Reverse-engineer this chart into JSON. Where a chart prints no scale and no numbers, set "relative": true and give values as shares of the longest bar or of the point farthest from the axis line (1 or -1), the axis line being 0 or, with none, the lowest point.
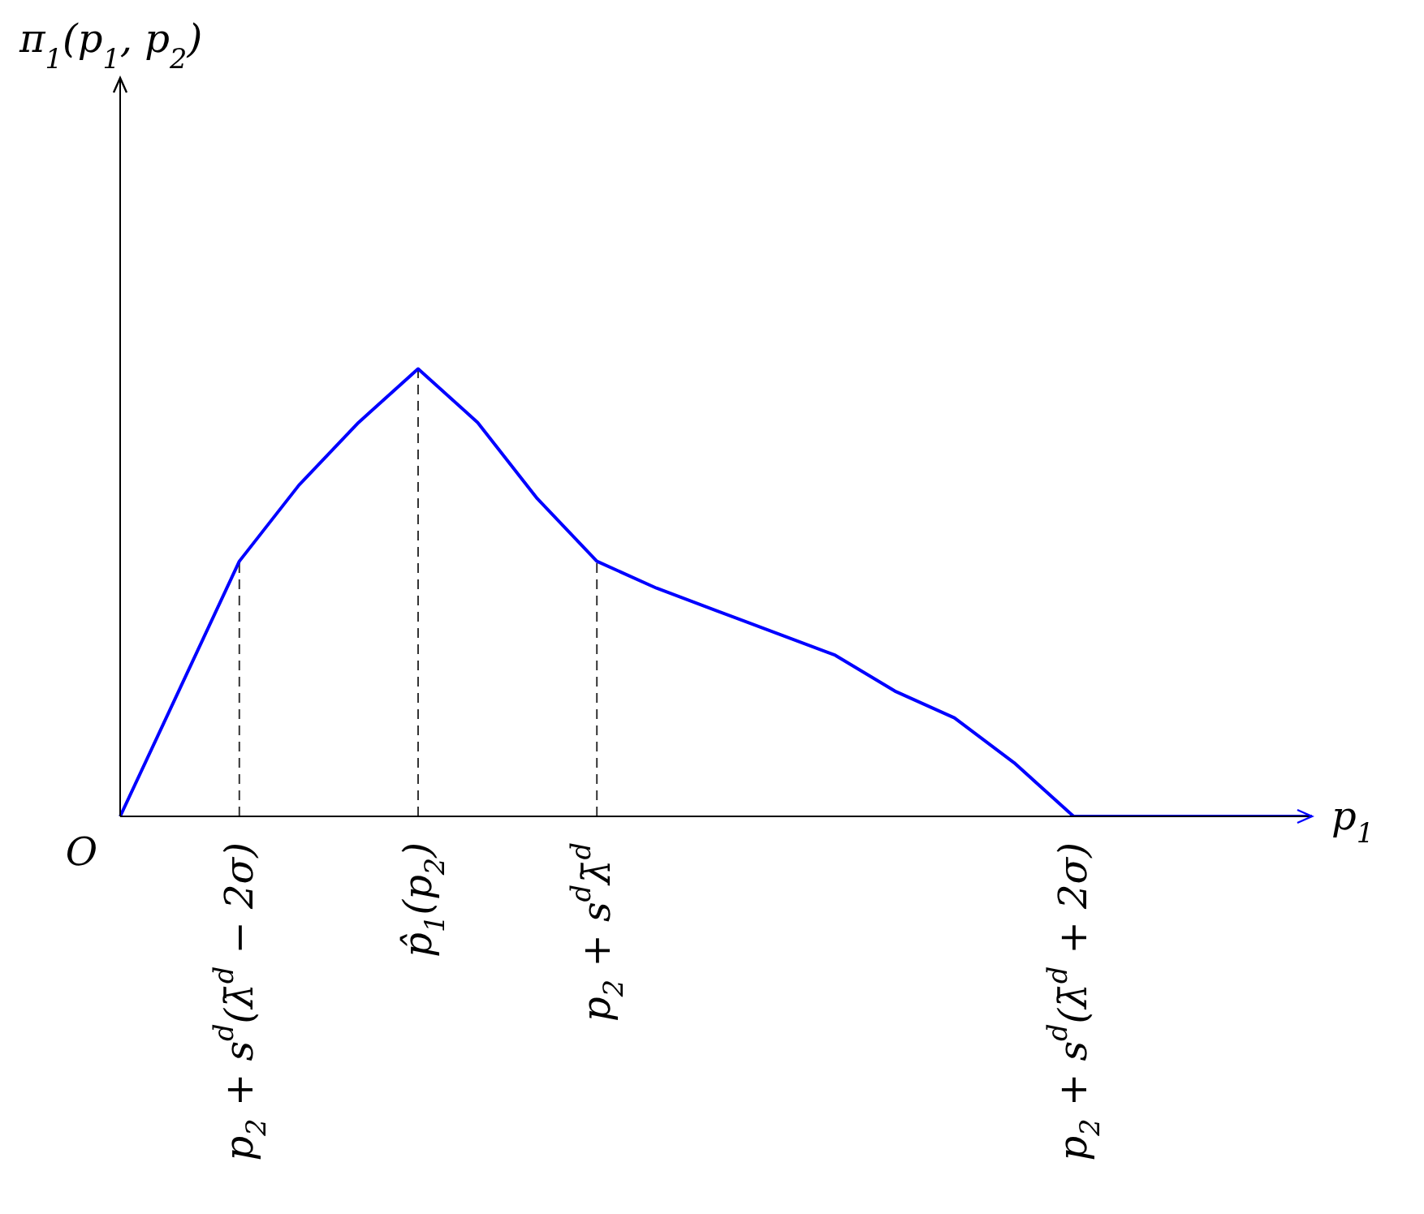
{
  "chart_data": {
    "type": "line",
    "relative": true,
    "xlabel": "p$_{1}$",
    "categories": [
      null,
      null,
      "p$_{2}$ + s$^{d}$(λ̄$^{d}$ − 2σ)",
      null,
      null,
      "p̂$_{1}$(p$_{2}$)",
      null,
      null,
      "p$_{2}$ + s$^{d}$λ̄$^{d}$",
      null,
      null,
      null,
      null,
      null,
      null,
      null,
      "p$_{2}$ + s$^{d}$(λ̄$^{d}$ + 2σ)",
      null,
      null,
      null,
      null
    ],
    "series": [
      {
        "color": "#0000ff",
        "values": [
          0,
          0.285,
          0.57,
          0.74,
          0.88,
          1,
          0.88,
          0.71,
          0.57,
          0.51,
          0.46,
          0.41,
          0.36,
          0.28,
          0.22,
          0.12,
          0,
          0,
          0,
          0,
          0
        ]
      }
    ],
    "ref_lines": [
      {
        "axis": "x",
        "value": "p$_{2}$ + s$^{d}$(λ̄$^{d}$ − 2σ)",
        "line_style": "dashed",
        "color": "#333333"
      },
      {
        "axis": "x",
        "value": "p̂$_{1}$(p$_{2}$)",
        "line_style": "dashed",
        "color": "#333333"
      },
      {
        "axis": "x",
        "value": "p$_{2}$ + s$^{d}$λ̄$^{d}$",
        "line_style": "dashed",
        "color": "#333333"
      }
    ],
    "annotations": [
      "π$_{1}$(p$_{1}$, p$_{2}$)",
      "O"
    ],
    "marker": "none",
    "line_style": "solid"
  }
}
